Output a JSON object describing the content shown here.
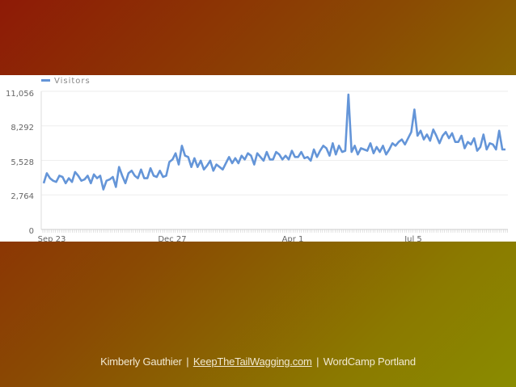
{
  "chart_data": {
    "type": "line",
    "legend": [
      "Visitors"
    ],
    "legend_position": "top-left",
    "grid": true,
    "ylim": [
      0,
      11056
    ],
    "y_ticks": [
      "0",
      "2,764",
      "5,528",
      "8,292",
      "11,056"
    ],
    "x_ticks": [
      "Sep 23",
      "Dec 27",
      "Apr 1",
      "Jul 5"
    ],
    "series": [
      {
        "name": "Visitors",
        "color": "#6495d8",
        "values": [
          3700,
          4500,
          4100,
          3900,
          3800,
          4300,
          4200,
          3700,
          4100,
          3800,
          4600,
          4300,
          3900,
          4000,
          4300,
          3700,
          4400,
          4100,
          4300,
          3200,
          3900,
          4000,
          4200,
          3400,
          5000,
          4300,
          3700,
          4500,
          4700,
          4300,
          4100,
          4800,
          4100,
          4100,
          4900,
          4300,
          4200,
          4700,
          4200,
          4300,
          5400,
          5600,
          6100,
          5200,
          6700,
          5900,
          5800,
          5000,
          5700,
          5000,
          5500,
          4800,
          5100,
          5500,
          4700,
          5200,
          5000,
          4800,
          5300,
          5800,
          5300,
          5700,
          5300,
          5900,
          5600,
          6100,
          5900,
          5200,
          6100,
          5800,
          5500,
          6200,
          5600,
          5600,
          6200,
          6000,
          5600,
          5900,
          5600,
          6300,
          5800,
          5800,
          6200,
          5700,
          5800,
          5500,
          6400,
          5800,
          6300,
          6700,
          6500,
          5900,
          6900,
          6000,
          6700,
          6200,
          6300,
          10800,
          6200,
          6700,
          6000,
          6500,
          6400,
          6300,
          6900,
          6100,
          6600,
          6200,
          6700,
          6000,
          6400,
          6900,
          6700,
          7000,
          7200,
          6800,
          7300,
          7800,
          9600,
          7500,
          7900,
          7200,
          7600,
          7100,
          8000,
          7500,
          6900,
          7500,
          7800,
          7300,
          7700,
          7000,
          7000,
          7500,
          6500,
          7000,
          6800,
          7300,
          6300,
          6600,
          7600,
          6400,
          6900,
          6800,
          6400,
          7900,
          6400,
          6400
        ]
      }
    ]
  }
}
